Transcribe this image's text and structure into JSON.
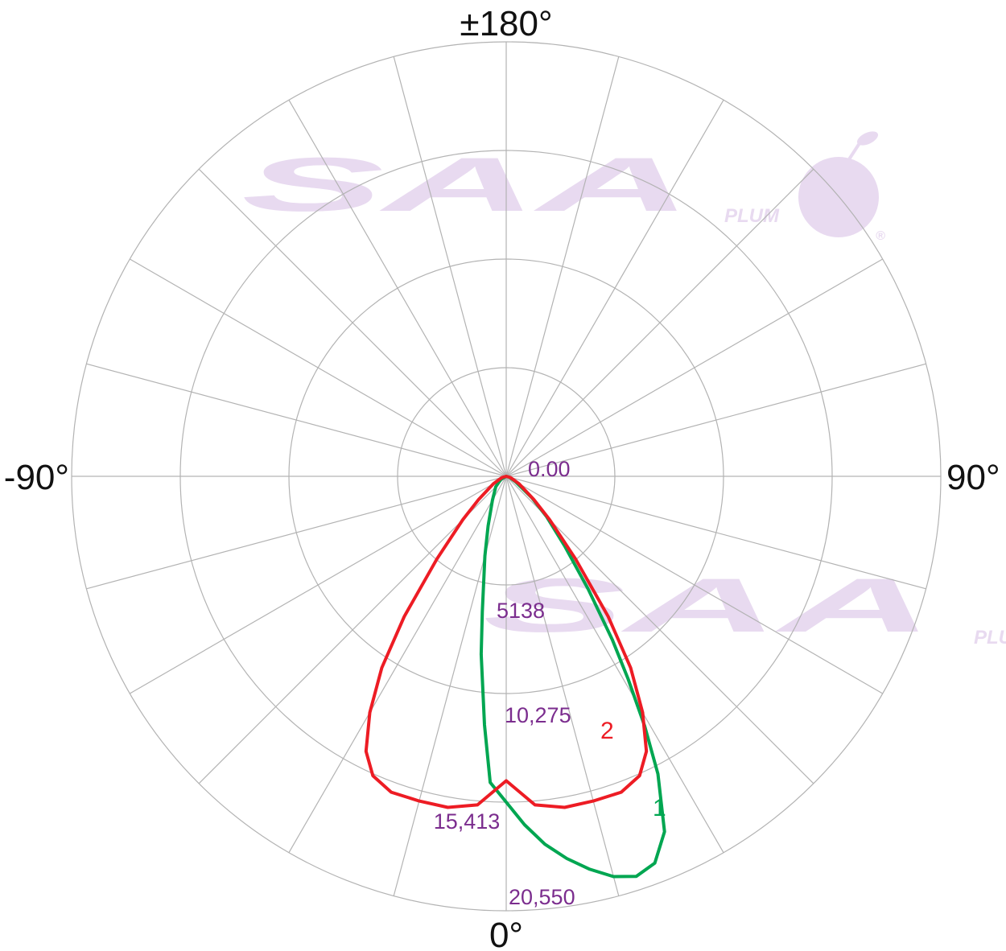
{
  "chart_data": {
    "type": "polar",
    "angle_labels": [
      "±180°",
      "90°",
      "0°",
      "-90°"
    ],
    "angle_label_angles": [
      180,
      90,
      0,
      -90
    ],
    "radial_tick_labels": [
      "0.00",
      "5138",
      "10,275",
      "15,413",
      "20,550"
    ],
    "radial_ticks": [
      0,
      5138,
      10275,
      15413,
      20550
    ],
    "rmax": 20550,
    "spoke_step_deg": 15,
    "grid": true,
    "colors": {
      "grid": "#b3b3b3",
      "tick_labels": "#7b2d8e",
      "axis_labels": "#111111"
    },
    "series": [
      {
        "label": "1",
        "color": "#00a651",
        "points": [
          [
            -180,
            0
          ],
          [
            -90,
            0
          ],
          [
            -60,
            300
          ],
          [
            -45,
            700
          ],
          [
            -30,
            1300
          ],
          [
            -20,
            2500
          ],
          [
            -15,
            3900
          ],
          [
            -10,
            6500
          ],
          [
            -8,
            8500
          ],
          [
            -5,
            11800
          ],
          [
            -3,
            14500
          ],
          [
            0,
            15413
          ],
          [
            3,
            16500
          ],
          [
            6,
            17500
          ],
          [
            9,
            18300
          ],
          [
            12,
            19000
          ],
          [
            15,
            19600
          ],
          [
            18,
            19900
          ],
          [
            21,
            19600
          ],
          [
            24,
            18400
          ],
          [
            27,
            15800
          ],
          [
            29,
            13500
          ],
          [
            31,
            11200
          ],
          [
            33,
            9200
          ],
          [
            36,
            6600
          ],
          [
            40,
            4300
          ],
          [
            45,
            2700
          ],
          [
            50,
            1600
          ],
          [
            60,
            500
          ],
          [
            75,
            150
          ],
          [
            90,
            0
          ],
          [
            180,
            0
          ]
        ]
      },
      {
        "label": "2",
        "color": "#ed1c24",
        "points": [
          [
            -180,
            0
          ],
          [
            -90,
            0
          ],
          [
            -75,
            200
          ],
          [
            -60,
            700
          ],
          [
            -50,
            1700
          ],
          [
            -45,
            2900
          ],
          [
            -40,
            5100
          ],
          [
            -36,
            8200
          ],
          [
            -33,
            10800
          ],
          [
            -30,
            12900
          ],
          [
            -27,
            14600
          ],
          [
            -24,
            15500
          ],
          [
            -20,
            15900
          ],
          [
            -15,
            15900
          ],
          [
            -10,
            15900
          ],
          [
            -5,
            15600
          ],
          [
            0,
            14400
          ],
          [
            5,
            15600
          ],
          [
            10,
            15900
          ],
          [
            15,
            15900
          ],
          [
            20,
            15900
          ],
          [
            24,
            15500
          ],
          [
            27,
            14600
          ],
          [
            30,
            12900
          ],
          [
            33,
            10800
          ],
          [
            36,
            8200
          ],
          [
            40,
            5100
          ],
          [
            45,
            2900
          ],
          [
            50,
            1700
          ],
          [
            60,
            700
          ],
          [
            75,
            200
          ],
          [
            90,
            0
          ],
          [
            180,
            0
          ]
        ]
      }
    ]
  },
  "watermark": {
    "brand": "SAA",
    "sub": "PLUM",
    "mark": "®",
    "color": "#e8daf0",
    "icon": "plum-icon"
  }
}
